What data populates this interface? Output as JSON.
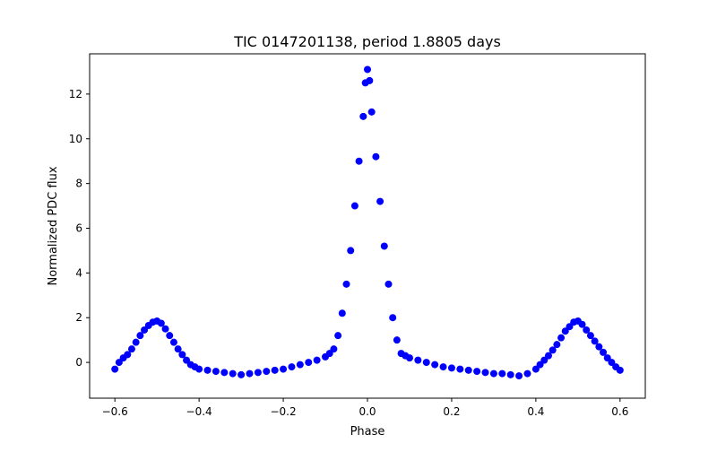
{
  "chart_data": {
    "type": "scatter",
    "title": "TIC 0147201138, period 1.8805 days",
    "xlabel": "Phase",
    "ylabel": "Normalized PDC flux",
    "xlim": [
      -0.66,
      0.66
    ],
    "ylim": [
      -1.6,
      13.8
    ],
    "grid": false,
    "point_color": "#0000ff",
    "x_ticks": [
      {
        "value": -0.6,
        "label": "−0.6"
      },
      {
        "value": -0.4,
        "label": "−0.4"
      },
      {
        "value": -0.2,
        "label": "−0.2"
      },
      {
        "value": 0.0,
        "label": "0.0"
      },
      {
        "value": 0.2,
        "label": "0.2"
      },
      {
        "value": 0.4,
        "label": "0.4"
      },
      {
        "value": 0.6,
        "label": "0.6"
      }
    ],
    "y_ticks": [
      {
        "value": 0,
        "label": "0"
      },
      {
        "value": 2,
        "label": "2"
      },
      {
        "value": 4,
        "label": "4"
      },
      {
        "value": 6,
        "label": "6"
      },
      {
        "value": 8,
        "label": "8"
      },
      {
        "value": 10,
        "label": "10"
      },
      {
        "value": 12,
        "label": "12"
      }
    ],
    "series": [
      {
        "points": [
          [
            -0.6,
            -0.3
          ],
          [
            -0.59,
            0.0
          ],
          [
            -0.58,
            0.2
          ],
          [
            -0.57,
            0.35
          ],
          [
            -0.56,
            0.6
          ],
          [
            -0.55,
            0.9
          ],
          [
            -0.54,
            1.2
          ],
          [
            -0.53,
            1.45
          ],
          [
            -0.52,
            1.65
          ],
          [
            -0.51,
            1.8
          ],
          [
            -0.5,
            1.85
          ],
          [
            -0.49,
            1.75
          ],
          [
            -0.48,
            1.5
          ],
          [
            -0.47,
            1.2
          ],
          [
            -0.46,
            0.9
          ],
          [
            -0.45,
            0.6
          ],
          [
            -0.44,
            0.35
          ],
          [
            -0.43,
            0.1
          ],
          [
            -0.42,
            -0.1
          ],
          [
            -0.41,
            -0.2
          ],
          [
            -0.4,
            -0.3
          ],
          [
            -0.38,
            -0.35
          ],
          [
            -0.36,
            -0.4
          ],
          [
            -0.34,
            -0.45
          ],
          [
            -0.32,
            -0.5
          ],
          [
            -0.3,
            -0.55
          ],
          [
            -0.28,
            -0.5
          ],
          [
            -0.26,
            -0.45
          ],
          [
            -0.24,
            -0.4
          ],
          [
            -0.22,
            -0.35
          ],
          [
            -0.2,
            -0.3
          ],
          [
            -0.18,
            -0.2
          ],
          [
            -0.16,
            -0.1
          ],
          [
            -0.14,
            0.0
          ],
          [
            -0.12,
            0.1
          ],
          [
            -0.1,
            0.25
          ],
          [
            -0.09,
            0.4
          ],
          [
            -0.08,
            0.6
          ],
          [
            -0.07,
            1.2
          ],
          [
            -0.06,
            2.2
          ],
          [
            -0.05,
            3.5
          ],
          [
            -0.04,
            5.0
          ],
          [
            -0.03,
            7.0
          ],
          [
            -0.02,
            9.0
          ],
          [
            -0.01,
            11.0
          ],
          [
            -0.005,
            12.5
          ],
          [
            0.0,
            13.1
          ],
          [
            0.005,
            12.6
          ],
          [
            0.01,
            11.2
          ],
          [
            0.02,
            9.2
          ],
          [
            0.03,
            7.2
          ],
          [
            0.04,
            5.2
          ],
          [
            0.05,
            3.5
          ],
          [
            0.06,
            2.0
          ],
          [
            0.07,
            1.0
          ],
          [
            0.08,
            0.4
          ],
          [
            0.09,
            0.3
          ],
          [
            0.1,
            0.2
          ],
          [
            0.12,
            0.1
          ],
          [
            0.14,
            0.0
          ],
          [
            0.16,
            -0.1
          ],
          [
            0.18,
            -0.2
          ],
          [
            0.2,
            -0.25
          ],
          [
            0.22,
            -0.3
          ],
          [
            0.24,
            -0.35
          ],
          [
            0.26,
            -0.4
          ],
          [
            0.28,
            -0.45
          ],
          [
            0.3,
            -0.5
          ],
          [
            0.32,
            -0.5
          ],
          [
            0.34,
            -0.55
          ],
          [
            0.36,
            -0.6
          ],
          [
            0.38,
            -0.5
          ],
          [
            0.4,
            -0.3
          ],
          [
            0.41,
            -0.1
          ],
          [
            0.42,
            0.1
          ],
          [
            0.43,
            0.3
          ],
          [
            0.44,
            0.55
          ],
          [
            0.45,
            0.8
          ],
          [
            0.46,
            1.1
          ],
          [
            0.47,
            1.4
          ],
          [
            0.48,
            1.6
          ],
          [
            0.49,
            1.8
          ],
          [
            0.5,
            1.85
          ],
          [
            0.51,
            1.7
          ],
          [
            0.52,
            1.45
          ],
          [
            0.53,
            1.2
          ],
          [
            0.54,
            0.95
          ],
          [
            0.55,
            0.7
          ],
          [
            0.56,
            0.45
          ],
          [
            0.57,
            0.2
          ],
          [
            0.58,
            0.0
          ],
          [
            0.59,
            -0.2
          ],
          [
            0.6,
            -0.35
          ]
        ]
      }
    ]
  }
}
